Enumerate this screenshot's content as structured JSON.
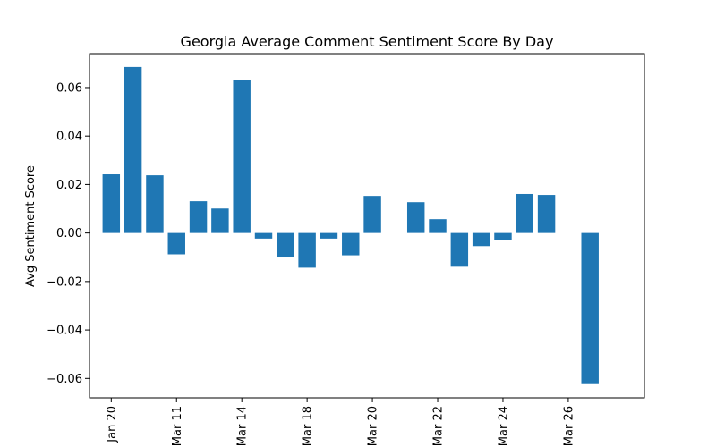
{
  "chart_data": {
    "type": "bar",
    "title": "Georgia Average Comment Sentiment Score By Day",
    "xlabel": "",
    "ylabel": "Avg Sentiment Score",
    "ylim": [
      -0.068,
      0.074
    ],
    "y_ticks": [
      0.06,
      0.04,
      0.02,
      0.0,
      -0.02,
      -0.04,
      -0.06
    ],
    "y_tick_labels": [
      "0.06",
      "0.04",
      "0.02",
      "0.00",
      "−0.02",
      "−0.04",
      "−0.06"
    ],
    "x_range": [
      -1,
      24.5
    ],
    "x_ticks": [
      {
        "x": 0,
        "label": "Jan 20"
      },
      {
        "x": 3,
        "label": "Mar 11"
      },
      {
        "x": 6,
        "label": "Mar 14"
      },
      {
        "x": 9,
        "label": "Mar 18"
      },
      {
        "x": 12,
        "label": "Mar 20"
      },
      {
        "x": 15,
        "label": "Mar 22"
      },
      {
        "x": 18,
        "label": "Mar 24"
      },
      {
        "x": 21,
        "label": "Mar 26"
      }
    ],
    "bars": [
      {
        "x": 0,
        "value": 0.0242
      },
      {
        "x": 1,
        "value": 0.0685
      },
      {
        "x": 2,
        "value": 0.0238
      },
      {
        "x": 3,
        "value": -0.0088
      },
      {
        "x": 4,
        "value": 0.0131
      },
      {
        "x": 5,
        "value": 0.0101
      },
      {
        "x": 6,
        "value": 0.0632
      },
      {
        "x": 7,
        "value": -0.0023
      },
      {
        "x": 8,
        "value": -0.0101
      },
      {
        "x": 9,
        "value": -0.0143
      },
      {
        "x": 10,
        "value": -0.0023
      },
      {
        "x": 11,
        "value": -0.0092
      },
      {
        "x": 12,
        "value": 0.0153
      },
      {
        "x": 14,
        "value": 0.0127
      },
      {
        "x": 15,
        "value": 0.0057
      },
      {
        "x": 16,
        "value": -0.0139
      },
      {
        "x": 17,
        "value": -0.0054
      },
      {
        "x": 18,
        "value": -0.003
      },
      {
        "x": 19,
        "value": 0.0161
      },
      {
        "x": 20,
        "value": 0.0157
      },
      {
        "x": 22,
        "value": -0.062
      }
    ],
    "bar_color": "#1f77b4",
    "grid": false,
    "legend": "none"
  }
}
